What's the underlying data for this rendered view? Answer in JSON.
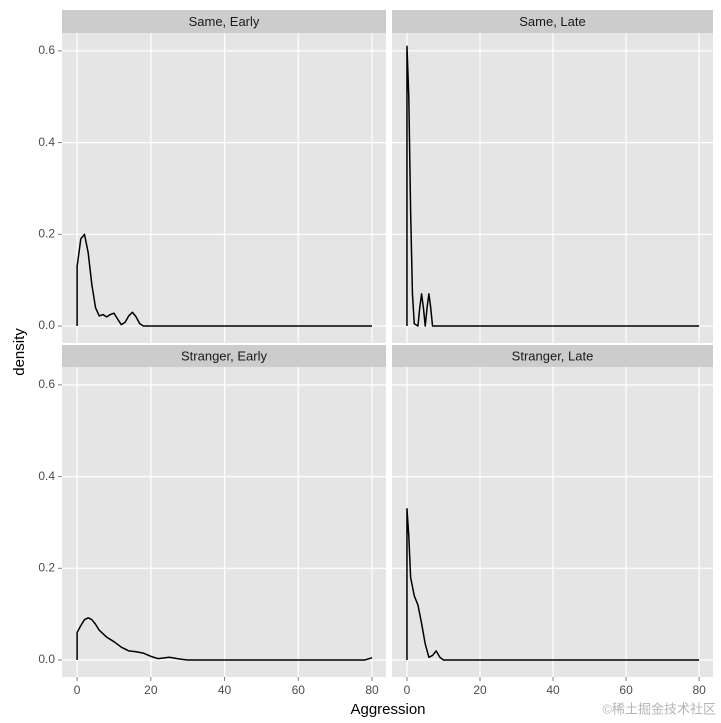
{
  "axes": {
    "x_label": "Aggression",
    "y_label": "density",
    "xlim": [
      -4.1,
      83.8
    ],
    "ylim": [
      -0.037,
      0.639
    ],
    "xticks": [
      0,
      20,
      40,
      60,
      80
    ],
    "yticks": [
      {
        "value": 0,
        "label": "0.0"
      },
      {
        "value": 0.2,
        "label": "0.2"
      },
      {
        "value": 0.4,
        "label": "0.4"
      },
      {
        "value": 0.6,
        "label": "0.6"
      }
    ],
    "grid": true,
    "line_color": "#000000"
  },
  "watermark": "©稀土掘金技术社区",
  "chart_data": [
    {
      "type": "line",
      "title": "Same, Early",
      "x": [
        0,
        0,
        1,
        2,
        3,
        4,
        5,
        6,
        7,
        8,
        9,
        10,
        11,
        12,
        13,
        14,
        15,
        16,
        17,
        18,
        80
      ],
      "values": [
        0,
        0.13,
        0.19,
        0.2,
        0.16,
        0.09,
        0.04,
        0.022,
        0.025,
        0.02,
        0.025,
        0.028,
        0.015,
        0.003,
        0.008,
        0.022,
        0.03,
        0.02,
        0.005,
        0,
        0
      ]
    },
    {
      "type": "line",
      "title": "Same, Late",
      "x": [
        0,
        0,
        0.5,
        1,
        1.5,
        2,
        3,
        3.5,
        4,
        4.5,
        5,
        5.5,
        6,
        6.5,
        7,
        80
      ],
      "values": [
        0,
        0.61,
        0.5,
        0.25,
        0.07,
        0.005,
        0,
        0.04,
        0.07,
        0.04,
        0,
        0.04,
        0.07,
        0.04,
        0,
        0
      ]
    },
    {
      "type": "line",
      "title": "Stranger, Early",
      "x": [
        0,
        0,
        1,
        2,
        3,
        4,
        5,
        6,
        8,
        10,
        12,
        14,
        16,
        18,
        20,
        22,
        25,
        28,
        30,
        78,
        80
      ],
      "values": [
        0,
        0.06,
        0.075,
        0.088,
        0.092,
        0.088,
        0.078,
        0.065,
        0.05,
        0.04,
        0.028,
        0.02,
        0.018,
        0.015,
        0.008,
        0.003,
        0.006,
        0.002,
        0,
        0,
        0.005
      ]
    },
    {
      "type": "line",
      "title": "Stranger, Late",
      "x": [
        0,
        0,
        0.5,
        1,
        2,
        3,
        4,
        5,
        6,
        7,
        8,
        9,
        10,
        80
      ],
      "values": [
        0,
        0.33,
        0.27,
        0.18,
        0.14,
        0.12,
        0.08,
        0.035,
        0.006,
        0.01,
        0.02,
        0.006,
        0,
        0
      ]
    }
  ]
}
